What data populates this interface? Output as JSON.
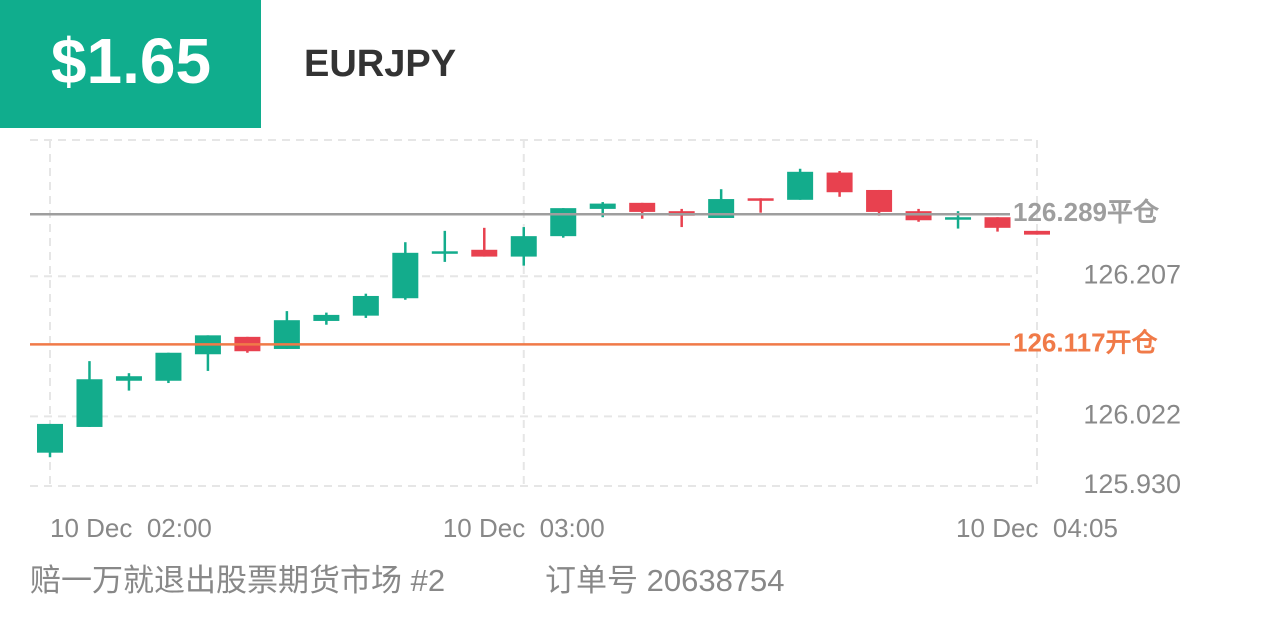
{
  "header": {
    "profit": "$1.65",
    "symbol": "EURJPY"
  },
  "chart_data": {
    "type": "candlestick",
    "categories": [
      "10 Dec  02:00",
      null,
      null,
      null,
      null,
      null,
      null,
      null,
      null,
      null,
      null,
      null,
      "10 Dec  03:00",
      null,
      null,
      null,
      null,
      null,
      null,
      null,
      null,
      null,
      null,
      null,
      null,
      "10 Dec  04:05"
    ],
    "open": [
      125.974,
      126.008,
      126.069,
      126.069,
      126.104,
      126.127,
      126.111,
      126.148,
      126.155,
      126.178,
      126.237,
      126.242,
      126.233,
      126.26,
      126.296,
      126.304,
      126.293,
      126.284,
      126.31,
      126.308,
      126.344,
      126.321,
      126.293,
      126.283,
      126.285,
      126.267
    ],
    "high": [
      126.012,
      126.095,
      126.079,
      126.106,
      126.129,
      126.127,
      126.161,
      126.159,
      126.184,
      126.252,
      126.267,
      126.271,
      126.272,
      126.297,
      126.305,
      126.304,
      126.296,
      126.322,
      126.31,
      126.349,
      126.346,
      126.321,
      126.296,
      126.293,
      126.285,
      126.267
    ],
    "low": [
      125.968,
      126.008,
      126.056,
      126.066,
      126.082,
      126.106,
      126.111,
      126.143,
      126.152,
      126.176,
      126.226,
      126.233,
      126.221,
      126.258,
      126.285,
      126.283,
      126.272,
      126.284,
      126.291,
      126.308,
      126.312,
      126.287,
      126.279,
      126.27,
      126.266,
      126.262
    ],
    "close": [
      126.012,
      126.071,
      126.075,
      126.106,
      126.129,
      126.108,
      126.149,
      126.156,
      126.181,
      126.238,
      126.24,
      126.233,
      126.26,
      126.297,
      126.303,
      126.292,
      126.287,
      126.309,
      126.308,
      126.345,
      126.318,
      126.292,
      126.281,
      126.285,
      126.271,
      126.262
    ],
    "up_color": "#13ac8c",
    "down_color": "#e8414f",
    "ylim": [
      125.93,
      126.387
    ],
    "yticks": [
      {
        "value": 125.93,
        "label": "125.930"
      },
      126.022,
      126.207
    ],
    "grid": true,
    "price_lines": [
      {
        "value": 126.289,
        "label": "126.289平仓",
        "color": "#9e9e9e"
      },
      {
        "value": 126.117,
        "label": "126.117开仓",
        "color": "#f07a48"
      }
    ]
  },
  "footer": {
    "note": "赔一万就退出股票期货市场 #2",
    "order": "订单号 20638754"
  }
}
